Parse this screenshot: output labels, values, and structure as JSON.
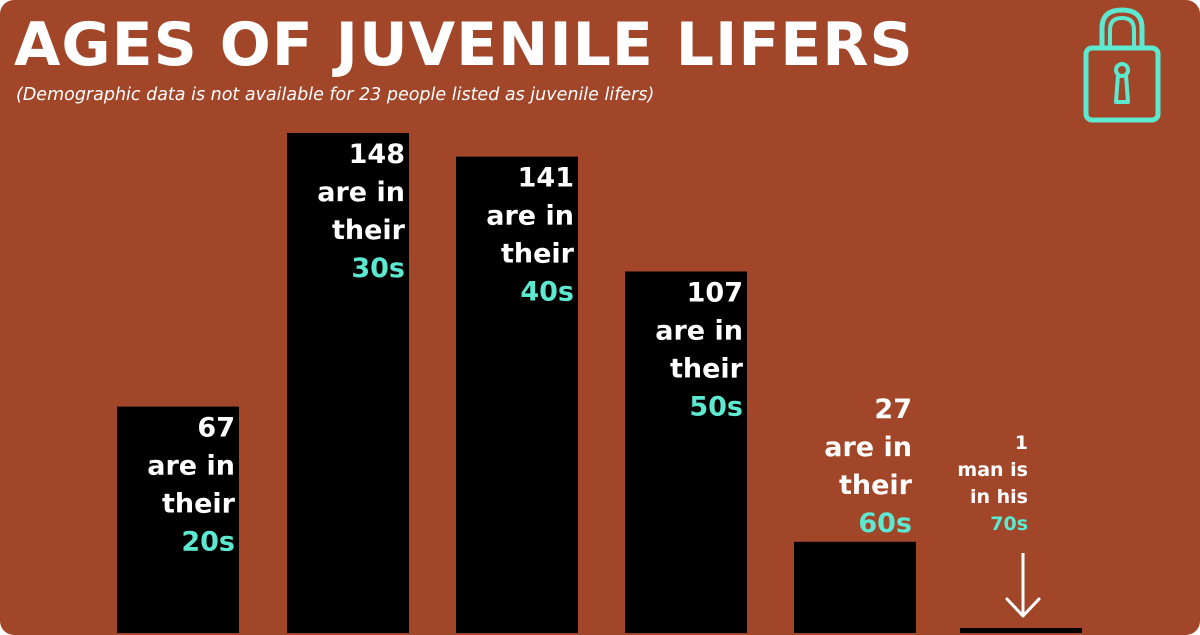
{
  "title": "AGES OF JUVENILE LIFERS",
  "subtitle": "(Demographic data is not available for 23 people listed as juvenile lifers)",
  "colors": {
    "background": "#a2462a",
    "bar": "#000000",
    "text": "#ffffff",
    "accent": "#5de8d0"
  },
  "icons": {
    "lock": "padlock-icon",
    "arrow": "arrow-down-icon"
  },
  "chart_data": {
    "type": "bar",
    "categories": [
      "20s",
      "30s",
      "40s",
      "50s",
      "60s",
      "70s"
    ],
    "values": [
      67,
      148,
      141,
      107,
      27,
      1
    ],
    "ylim": [
      0,
      148
    ],
    "grid": false,
    "bar_labels": [
      {
        "lines": [
          "67",
          "are in",
          "their"
        ],
        "accent": "20s"
      },
      {
        "lines": [
          "148",
          "are in",
          "their"
        ],
        "accent": "30s"
      },
      {
        "lines": [
          "141",
          "are in",
          "their"
        ],
        "accent": "40s"
      },
      {
        "lines": [
          "107",
          "are in",
          "their"
        ],
        "accent": "50s"
      },
      {
        "lines": [
          "27",
          "are in",
          "their"
        ],
        "accent": "60s"
      },
      {
        "lines": [
          "1",
          "man is",
          "in his"
        ],
        "accent": "70s"
      }
    ]
  }
}
